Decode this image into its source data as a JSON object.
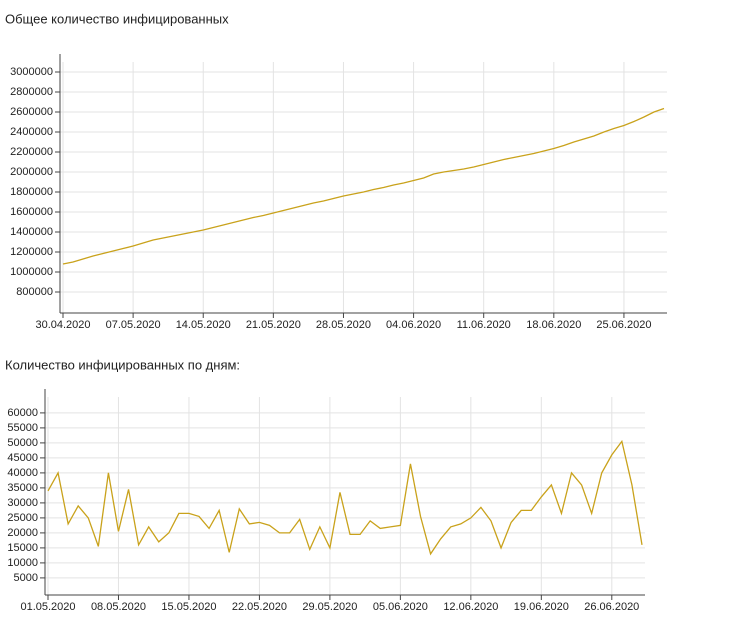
{
  "chart_data": [
    {
      "type": "line",
      "title": "Общее количество инфицированных",
      "color": "#c9a21b",
      "grid": true,
      "x": [
        "30.04.2020",
        "01.05.2020",
        "02.05.2020",
        "03.05.2020",
        "04.05.2020",
        "05.05.2020",
        "06.05.2020",
        "07.05.2020",
        "08.05.2020",
        "09.05.2020",
        "10.05.2020",
        "11.05.2020",
        "12.05.2020",
        "13.05.2020",
        "14.05.2020",
        "15.05.2020",
        "16.05.2020",
        "17.05.2020",
        "18.05.2020",
        "19.05.2020",
        "20.05.2020",
        "21.05.2020",
        "22.05.2020",
        "23.05.2020",
        "24.05.2020",
        "25.05.2020",
        "26.05.2020",
        "27.05.2020",
        "28.05.2020",
        "29.05.2020",
        "30.05.2020",
        "31.05.2020",
        "01.06.2020",
        "02.06.2020",
        "03.06.2020",
        "04.06.2020",
        "05.06.2020",
        "06.06.2020",
        "07.06.2020",
        "08.06.2020",
        "09.06.2020",
        "10.06.2020",
        "11.06.2020",
        "12.06.2020",
        "13.06.2020",
        "14.06.2020",
        "15.06.2020",
        "16.06.2020",
        "17.06.2020",
        "18.06.2020",
        "19.06.2020",
        "20.06.2020",
        "21.06.2020",
        "22.06.2020",
        "23.06.2020",
        "24.06.2020",
        "25.06.2020",
        "26.06.2020",
        "27.06.2020",
        "28.06.2020",
        "29.06.2020"
      ],
      "values": [
        1080000,
        1100000,
        1130000,
        1160000,
        1185000,
        1210000,
        1235000,
        1260000,
        1290000,
        1320000,
        1340000,
        1360000,
        1380000,
        1400000,
        1420000,
        1445000,
        1470000,
        1495000,
        1520000,
        1545000,
        1565000,
        1590000,
        1615000,
        1640000,
        1665000,
        1690000,
        1710000,
        1735000,
        1760000,
        1780000,
        1800000,
        1825000,
        1845000,
        1870000,
        1890000,
        1915000,
        1940000,
        1980000,
        2000000,
        2015000,
        2030000,
        2050000,
        2075000,
        2100000,
        2125000,
        2145000,
        2165000,
        2185000,
        2210000,
        2235000,
        2265000,
        2300000,
        2330000,
        2360000,
        2400000,
        2435000,
        2465000,
        2505000,
        2550000,
        2600000,
        2635000
      ],
      "xticks": [
        "30.04.2020",
        "07.05.2020",
        "14.05.2020",
        "21.05.2020",
        "28.05.2020",
        "04.06.2020",
        "11.06.2020",
        "18.06.2020",
        "25.06.2020"
      ],
      "ylim": [
        590000,
        3100000
      ],
      "yticks": [
        800000,
        1000000,
        1200000,
        1400000,
        1600000,
        1800000,
        2000000,
        2200000,
        2400000,
        2600000,
        2800000,
        3000000
      ]
    },
    {
      "type": "line",
      "title": "Количество инфицированных по дням:",
      "color": "#c9a21b",
      "grid": true,
      "x": [
        "01.05.2020",
        "02.05.2020",
        "03.05.2020",
        "04.05.2020",
        "05.05.2020",
        "06.05.2020",
        "07.05.2020",
        "08.05.2020",
        "09.05.2020",
        "10.05.2020",
        "11.05.2020",
        "12.05.2020",
        "13.05.2020",
        "14.05.2020",
        "15.05.2020",
        "16.05.2020",
        "17.05.2020",
        "18.05.2020",
        "19.05.2020",
        "20.05.2020",
        "21.05.2020",
        "22.05.2020",
        "23.05.2020",
        "24.05.2020",
        "25.05.2020",
        "26.05.2020",
        "27.05.2020",
        "28.05.2020",
        "29.05.2020",
        "30.05.2020",
        "31.05.2020",
        "01.06.2020",
        "02.06.2020",
        "03.06.2020",
        "04.06.2020",
        "05.06.2020",
        "06.06.2020",
        "07.06.2020",
        "08.06.2020",
        "09.06.2020",
        "10.06.2020",
        "11.06.2020",
        "12.06.2020",
        "13.06.2020",
        "14.06.2020",
        "15.06.2020",
        "16.06.2020",
        "17.06.2020",
        "18.06.2020",
        "19.06.2020",
        "20.06.2020",
        "21.06.2020",
        "22.06.2020",
        "23.06.2020",
        "24.06.2020",
        "25.06.2020",
        "26.06.2020",
        "27.06.2020",
        "28.06.2020",
        "29.06.2020"
      ],
      "values": [
        34000,
        40000,
        23000,
        29000,
        25000,
        15500,
        40000,
        20500,
        34500,
        16000,
        22000,
        17000,
        20000,
        26500,
        26500,
        25500,
        21500,
        27500,
        13500,
        28000,
        23000,
        23500,
        22500,
        20000,
        20000,
        24500,
        14500,
        22000,
        15000,
        33500,
        19500,
        19500,
        24000,
        21500,
        22000,
        22500,
        43000,
        25500,
        13000,
        18000,
        22000,
        23000,
        25000,
        28500,
        24000,
        15000,
        23500,
        27500,
        27500,
        32000,
        36000,
        26500,
        40000,
        36000,
        26500,
        40000,
        46000,
        50500,
        36000,
        16000
      ],
      "xticks": [
        "01.05.2020",
        "08.05.2020",
        "15.05.2020",
        "22.05.2020",
        "29.05.2020",
        "05.06.2020",
        "12.06.2020",
        "19.06.2020",
        "26.06.2020"
      ],
      "ylim": [
        -700,
        65300
      ],
      "yticks": [
        5000,
        10000,
        15000,
        20000,
        25000,
        30000,
        35000,
        40000,
        45000,
        50000,
        55000,
        60000
      ]
    }
  ]
}
